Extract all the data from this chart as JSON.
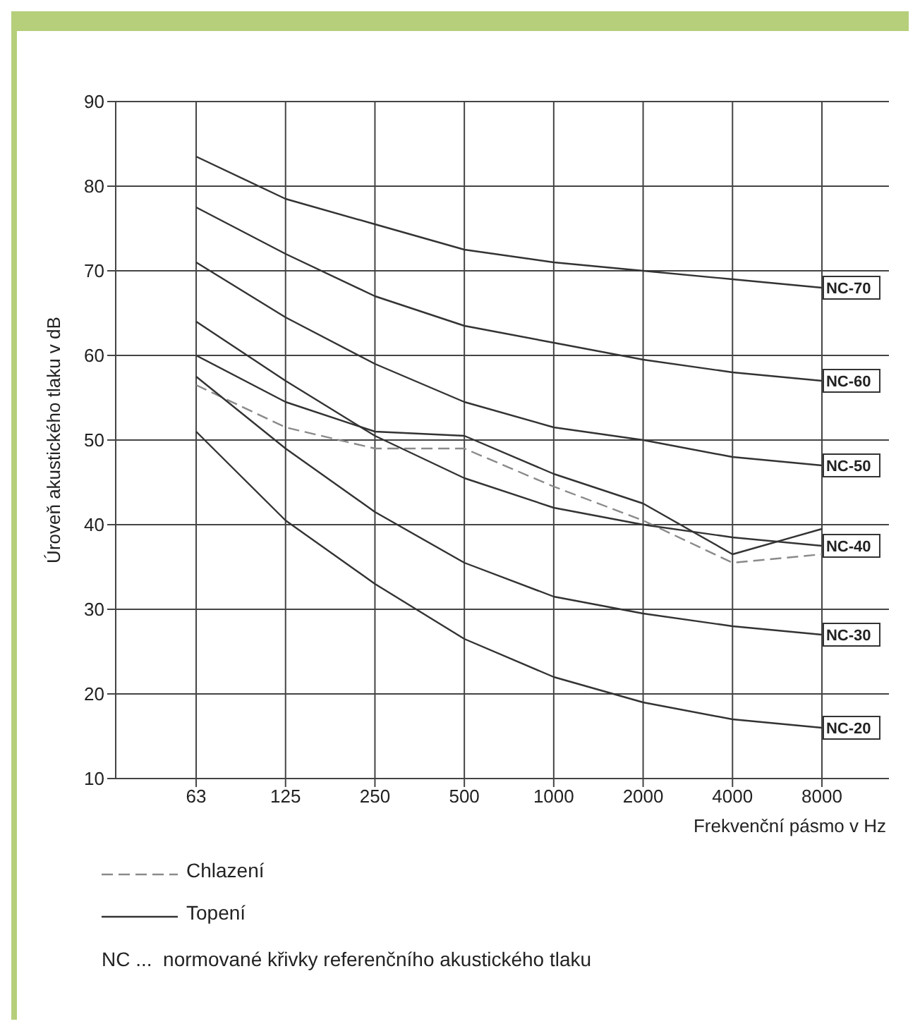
{
  "chart_data": {
    "type": "line",
    "xlabel": "Frekvenční pásmo v Hz",
    "ylabel": "Úroveň akustického tlaku v dB",
    "categories": [
      "63",
      "125",
      "250",
      "500",
      "1000",
      "2000",
      "4000",
      "8000"
    ],
    "ylim": [
      10,
      90
    ],
    "yticks": [
      10,
      20,
      30,
      40,
      50,
      60,
      70,
      80,
      90
    ],
    "grid": true,
    "legend": "bottom left",
    "marker": "none",
    "line_style": "solid",
    "annotations": [
      "NC ...  normované křivky referenčního akustického tlaku"
    ],
    "series": [
      {
        "name": "Chlazení",
        "color": "#8a8a8a",
        "line_style": "dashed",
        "values": [
          56.5,
          51.5,
          49,
          49,
          44.5,
          40.5,
          35.5,
          36.5
        ]
      },
      {
        "name": "Topení",
        "color": "#333333",
        "line_style": "solid",
        "values": [
          60,
          54.5,
          51,
          50.5,
          46,
          42.5,
          36.5,
          39.5
        ]
      },
      {
        "name": "NC-70",
        "color": "#333333",
        "values": [
          83.5,
          78.5,
          75.5,
          72.5,
          71,
          70,
          69,
          68
        ]
      },
      {
        "name": "NC-60",
        "color": "#333333",
        "values": [
          77.5,
          72,
          67,
          63.5,
          61.5,
          59.5,
          58,
          57
        ]
      },
      {
        "name": "NC-50",
        "color": "#333333",
        "values": [
          71,
          64.5,
          59,
          54.5,
          51.5,
          50,
          48,
          47
        ]
      },
      {
        "name": "NC-40",
        "color": "#333333",
        "values": [
          64,
          57,
          50.5,
          45.5,
          42,
          40,
          38.5,
          37.5
        ]
      },
      {
        "name": "NC-30",
        "color": "#333333",
        "values": [
          57.5,
          49,
          41.5,
          35.5,
          31.5,
          29.5,
          28,
          27
        ]
      },
      {
        "name": "NC-20",
        "color": "#333333",
        "values": [
          51,
          40.5,
          33,
          26.5,
          22,
          19,
          17,
          16
        ]
      }
    ]
  }
}
